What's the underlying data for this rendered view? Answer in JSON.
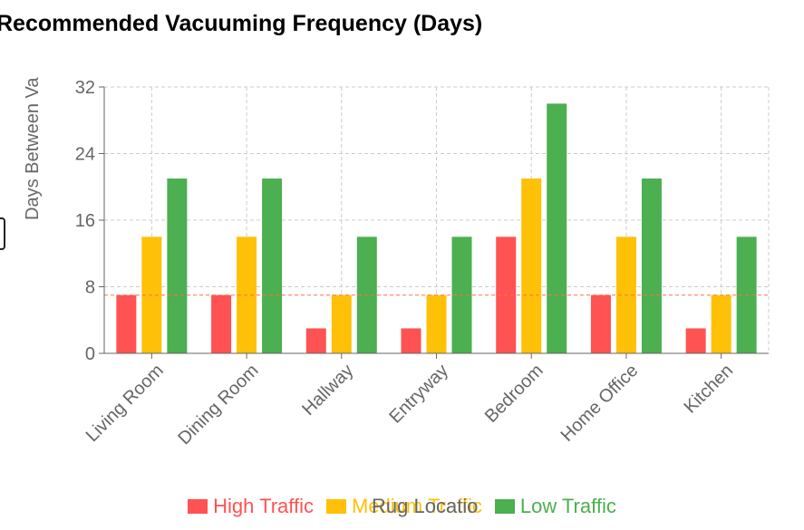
{
  "chart_data": {
    "type": "bar",
    "title": "Recommended Vacuuming Frequency (Days)",
    "ylabel": "Days Between Va",
    "xlabel": "Rug Locatio",
    "ylim": [
      0,
      32
    ],
    "yticks": [
      0,
      8,
      16,
      24,
      32
    ],
    "grid": true,
    "legend_position": "bottom",
    "categories": [
      "Living Room",
      "Dining Room",
      "Hallway",
      "Entryway",
      "Bedroom",
      "Home Office",
      "Kitchen"
    ],
    "series": [
      {
        "name": "High Traffic",
        "color": "#ff5252",
        "values": [
          7,
          7,
          3,
          3,
          14,
          7,
          3
        ]
      },
      {
        "name": "Medium Traffic",
        "color": "#ffc107",
        "values": [
          14,
          14,
          7,
          7,
          21,
          14,
          7
        ]
      },
      {
        "name": "Low Traffic",
        "color": "#4caf50",
        "values": [
          21,
          21,
          14,
          14,
          30,
          21,
          14
        ]
      }
    ],
    "reference_line": {
      "value": 7,
      "color": "#ff7043"
    }
  }
}
